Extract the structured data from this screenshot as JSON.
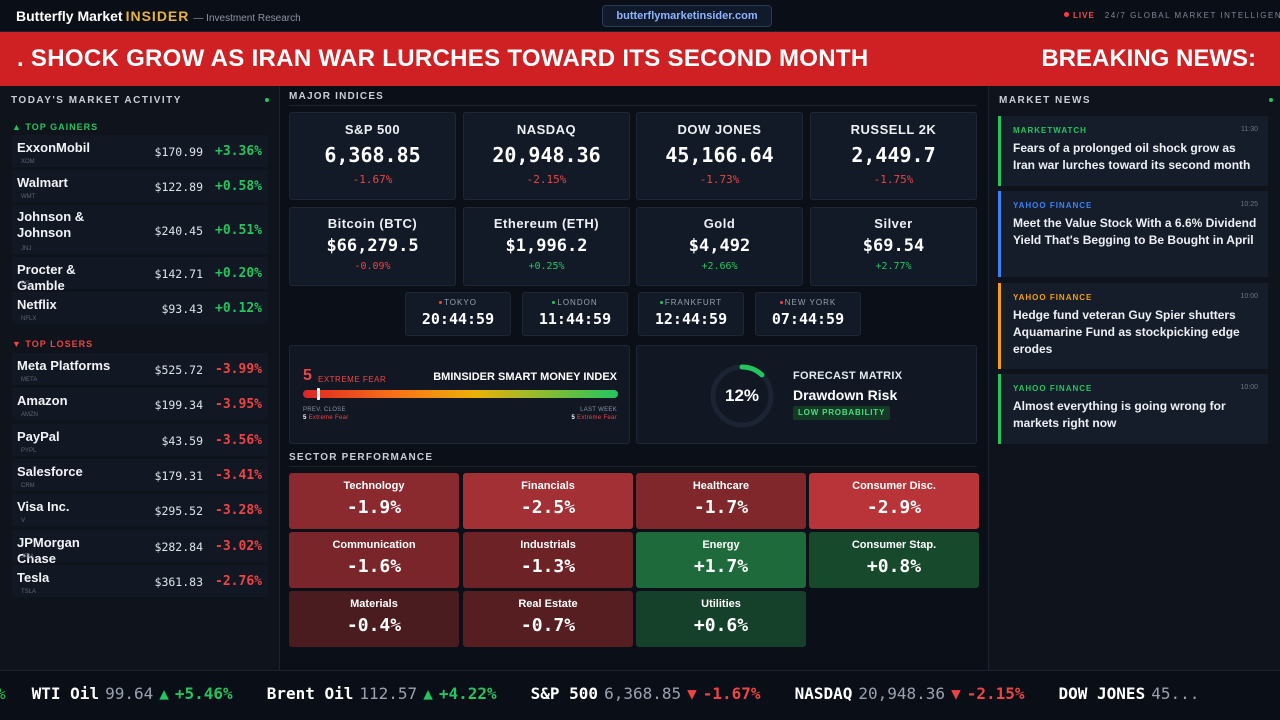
{
  "header": {
    "brand": "Butterfly Market",
    "brand_accent": "INSIDER",
    "tagline": "— Investment Research",
    "url": "butterflymarketinsider.com",
    "live": "LIVE",
    "intel": "24/7 GLOBAL MARKET INTELLIGENCE"
  },
  "banner": {
    "headline": ". SHOCK GROW AS IRAN WAR LURCHES TOWARD ITS SECOND MONTH",
    "label": "BREAKING NEWS:"
  },
  "left": {
    "title": "TODAY'S MARKET ACTIVITY",
    "gainers_title": "▲ TOP GAINERS",
    "losers_title": "▼ TOP LOSERS",
    "gainers": [
      {
        "name": "ExxonMobil",
        "ticker": "XOM",
        "price": "$170.99",
        "change": "+3.36%"
      },
      {
        "name": "Walmart",
        "ticker": "WMT",
        "price": "$122.89",
        "change": "+0.58%"
      },
      {
        "name": "Johnson & Johnson",
        "ticker": "JNJ",
        "price": "$240.45",
        "change": "+0.51%"
      },
      {
        "name": "Procter & Gamble",
        "ticker": "PG",
        "price": "$142.71",
        "change": "+0.20%"
      },
      {
        "name": "Netflix",
        "ticker": "NFLX",
        "price": "$93.43",
        "change": "+0.12%"
      }
    ],
    "losers": [
      {
        "name": "Meta Platforms",
        "ticker": "META",
        "price": "$525.72",
        "change": "-3.99%"
      },
      {
        "name": "Amazon",
        "ticker": "AMZN",
        "price": "$199.34",
        "change": "-3.95%"
      },
      {
        "name": "PayPal",
        "ticker": "PYPL",
        "price": "$43.59",
        "change": "-3.56%"
      },
      {
        "name": "Salesforce",
        "ticker": "CRM",
        "price": "$179.31",
        "change": "-3.41%"
      },
      {
        "name": "Visa Inc.",
        "ticker": "V",
        "price": "$295.52",
        "change": "-3.28%"
      },
      {
        "name": "JPMorgan Chase",
        "ticker": "JPM",
        "price": "$282.84",
        "change": "-3.02%"
      },
      {
        "name": "Tesla",
        "ticker": "TSLA",
        "price": "$361.83",
        "change": "-2.76%"
      }
    ]
  },
  "indices_title": "MAJOR INDICES",
  "indices": [
    {
      "name": "S&P 500",
      "value": "6,368.85",
      "change": "-1.67%",
      "dir": "dn"
    },
    {
      "name": "NASDAQ",
      "value": "20,948.36",
      "change": "-2.15%",
      "dir": "dn"
    },
    {
      "name": "DOW JONES",
      "value": "45,166.64",
      "change": "-1.73%",
      "dir": "dn"
    },
    {
      "name": "RUSSELL 2K",
      "value": "2,449.7",
      "change": "-1.75%",
      "dir": "dn"
    },
    {
      "name": "Bitcoin (BTC)",
      "value": "$66,279.5",
      "change": "-0.09%",
      "dir": "dn"
    },
    {
      "name": "Ethereum (ETH)",
      "value": "$1,996.2",
      "change": "+0.25%",
      "dir": "up"
    },
    {
      "name": "Gold",
      "value": "$4,492",
      "change": "+2.66%",
      "dir": "up"
    },
    {
      "name": "Silver",
      "value": "$69.54",
      "change": "+2.77%",
      "dir": "up"
    }
  ],
  "clocks": [
    {
      "city": "TOKYO",
      "time": "20:44:59",
      "dot": "#ef4444"
    },
    {
      "city": "LONDON",
      "time": "11:44:59",
      "dot": "#22c55e"
    },
    {
      "city": "FRANKFURT",
      "time": "12:44:59",
      "dot": "#22c55e"
    },
    {
      "city": "NEW YORK",
      "time": "07:44:59",
      "dot": "#ef4444"
    }
  ],
  "smart_money": {
    "score": "5",
    "label": "EXTREME FEAR",
    "title": "BMINSIDER SMART MONEY INDEX",
    "level_pct": 5,
    "prev_label": "PREV. CLOSE",
    "prev_score": "5",
    "prev_text": "Extreme Fear",
    "week_label": "LAST WEEK",
    "week_score": "5",
    "week_text": "Extreme Fear"
  },
  "forecast": {
    "pct": "12%",
    "pct_value": 12,
    "title": "FORECAST MATRIX",
    "subtitle": "Drawdown Risk",
    "badge": "LOW PROBABILITY",
    "ring_color": "#22c55e"
  },
  "sectors_title": "SECTOR PERFORMANCE",
  "sectors": [
    {
      "name": "Technology",
      "change": "-1.9%",
      "color": "#8b2a2e"
    },
    {
      "name": "Financials",
      "change": "-2.5%",
      "color": "#a33034"
    },
    {
      "name": "Healthcare",
      "change": "-1.7%",
      "color": "#7f272b"
    },
    {
      "name": "Consumer Disc.",
      "change": "-2.9%",
      "color": "#b83438"
    },
    {
      "name": "Communication",
      "change": "-1.6%",
      "color": "#7a2529"
    },
    {
      "name": "Industrials",
      "change": "-1.3%",
      "color": "#6d2225"
    },
    {
      "name": "Energy",
      "change": "+1.7%",
      "color": "#1e6a3b"
    },
    {
      "name": "Consumer Stap.",
      "change": "+0.8%",
      "color": "#17492c"
    },
    {
      "name": "Materials",
      "change": "-0.4%",
      "color": "#4a1c1f"
    },
    {
      "name": "Real Estate",
      "change": "-0.7%",
      "color": "#561e21"
    },
    {
      "name": "Utilities",
      "change": "+0.6%",
      "color": "#15412a"
    }
  ],
  "news_title": "MARKET NEWS",
  "news": [
    {
      "source": "MARKETWATCH",
      "time": "11:30",
      "headline": "Fears of a prolonged oil shock grow as Iran war lurches toward its second month",
      "color": "#22c55e"
    },
    {
      "source": "YAHOO FINANCE",
      "time": "10:25",
      "headline": "Meet the Value Stock With a 6.6% Dividend Yield That's Begging to Be Bought in April",
      "color": "#3b82f6"
    },
    {
      "source": "YAHOO FINANCE",
      "time": "10:00",
      "headline": "Hedge fund veteran Guy Spier shutters Aquamarine Fund as stockpicking edge erodes",
      "color": "#f59e0b"
    },
    {
      "source": "YAHOO FINANCE",
      "time": "10:00",
      "headline": "Almost everything is going wrong for markets right now",
      "color": "#22c55e"
    }
  ],
  "ticker_lead": "%",
  "ticker": [
    {
      "symbol": "WTI Oil",
      "price": "99.64",
      "arrow": "▲",
      "change": "+5.46%",
      "dir": "up"
    },
    {
      "symbol": "Brent Oil",
      "price": "112.57",
      "arrow": "▲",
      "change": "+4.22%",
      "dir": "up"
    },
    {
      "symbol": "S&P 500",
      "price": "6,368.85",
      "arrow": "▼",
      "change": "-1.67%",
      "dir": "dn"
    },
    {
      "symbol": "NASDAQ",
      "price": "20,948.36",
      "arrow": "▼",
      "change": "-2.15%",
      "dir": "dn"
    },
    {
      "symbol": "DOW JONES",
      "price": "45...",
      "arrow": "",
      "change": "",
      "dir": "dn"
    }
  ]
}
